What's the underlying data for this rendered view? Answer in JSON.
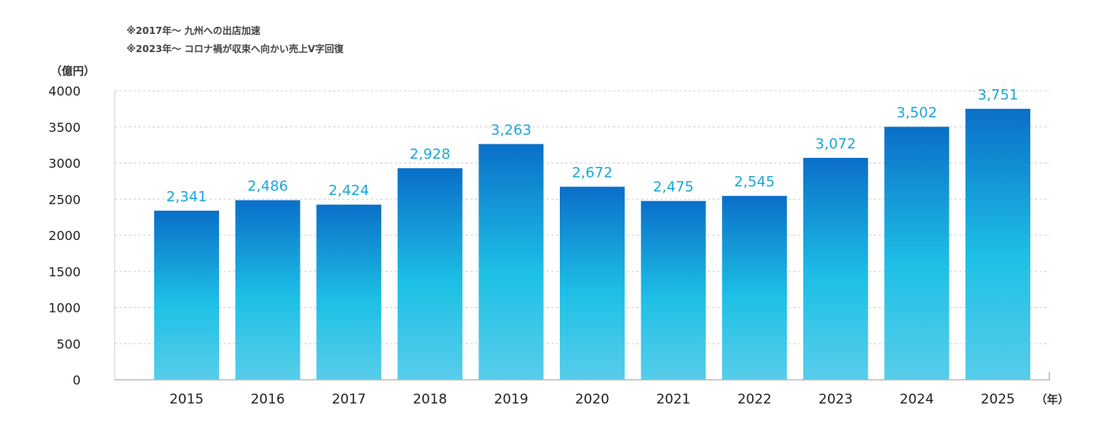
{
  "notes": [
    "※2017年〜 九州への出店加速",
    "※2023年〜 コロナ禍が収束へ向かい売上V字回復"
  ],
  "y_unit": "（億円）",
  "x_unit": "（年）",
  "colors": {
    "bar_top": "#0a6fc8",
    "bar_mid": "#1ec0e6",
    "bar_bottom": "#58cdea",
    "label": "#1aa6d9",
    "grid": "#cfcfcf",
    "axis": "#9a9a9a"
  },
  "chart_data": {
    "type": "bar",
    "categories": [
      "2015",
      "2016",
      "2017",
      "2018",
      "2019",
      "2020",
      "2021",
      "2022",
      "2023",
      "2024",
      "2025"
    ],
    "values": [
      2341,
      2486,
      2424,
      2928,
      3263,
      2672,
      2475,
      2545,
      3072,
      3502,
      3751
    ],
    "value_labels": [
      "2,341",
      "2,486",
      "2,424",
      "2,928",
      "3,263",
      "2,672",
      "2,475",
      "2,545",
      "3,072",
      "3,502",
      "3,751"
    ],
    "yticks": [
      "0",
      "500",
      "1000",
      "1500",
      "2000",
      "2500",
      "3000",
      "3500",
      "4000"
    ],
    "ylim": [
      0,
      4000
    ],
    "grid": true
  }
}
